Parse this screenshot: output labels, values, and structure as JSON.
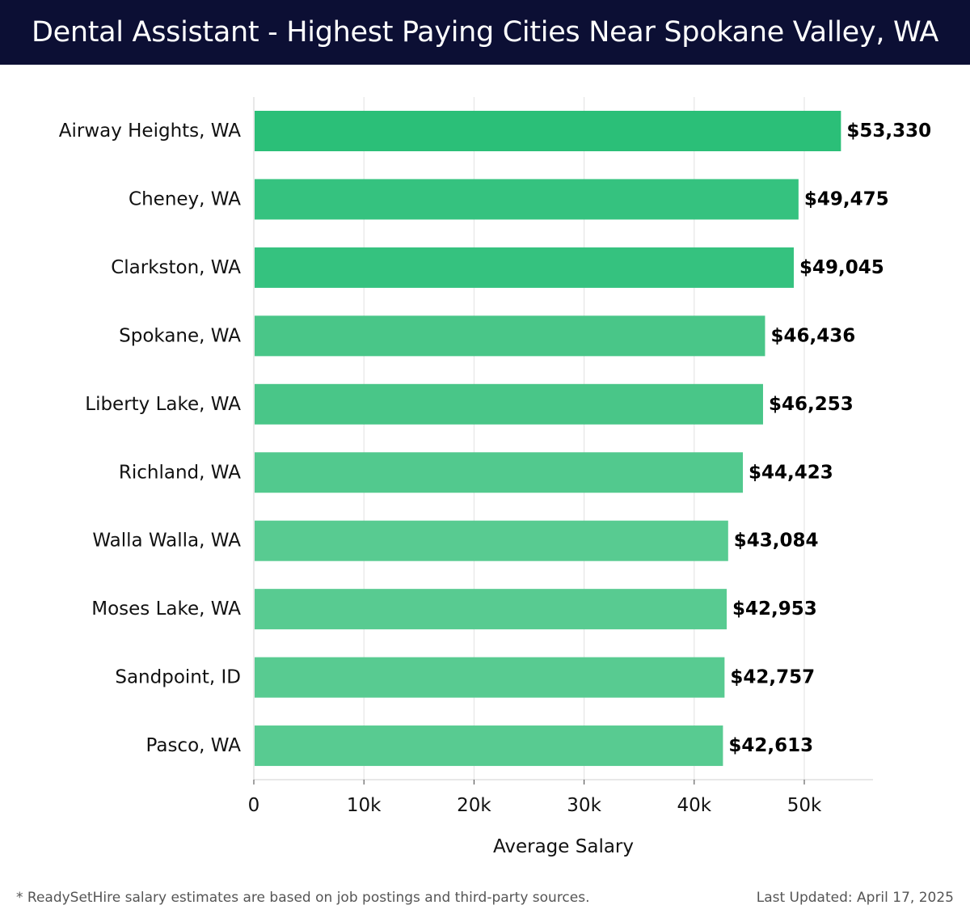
{
  "header": {
    "title": "Dental Assistant - Highest Paying Cities Near Spokane Valley, WA"
  },
  "chart_data": {
    "type": "bar",
    "orientation": "horizontal",
    "title": "Dental Assistant - Highest Paying Cities Near Spokane Valley, WA",
    "xlabel": "Average Salary",
    "ylabel": "",
    "xlim": [
      0,
      56000
    ],
    "x_ticks": [
      0,
      10000,
      20000,
      30000,
      40000,
      50000
    ],
    "x_tick_labels": [
      "0",
      "10k",
      "20k",
      "30k",
      "40k",
      "50k"
    ],
    "grid": "vertical",
    "categories": [
      "Airway Heights, WA",
      "Cheney, WA",
      "Clarkston, WA",
      "Spokane, WA",
      "Liberty Lake, WA",
      "Richland, WA",
      "Walla Walla, WA",
      "Moses Lake, WA",
      "Sandpoint, ID",
      "Pasco, WA"
    ],
    "values": [
      53330,
      49475,
      49045,
      46436,
      46253,
      44423,
      43084,
      42953,
      42757,
      42613
    ],
    "value_labels": [
      "$53,330",
      "$49,475",
      "$49,045",
      "$46,436",
      "$46,253",
      "$44,423",
      "$43,084",
      "$42,953",
      "$42,757",
      "$42,613"
    ],
    "colors": [
      "#2bbf78",
      "#35c27f",
      "#35c27f",
      "#49c688",
      "#49c688",
      "#52c98e",
      "#58cb91",
      "#58cb91",
      "#58cb91",
      "#58cb91"
    ]
  },
  "footer": {
    "note": "* ReadySetHire salary estimates are based on job postings and third-party sources.",
    "updated": "Last Updated: April 17, 2025"
  }
}
